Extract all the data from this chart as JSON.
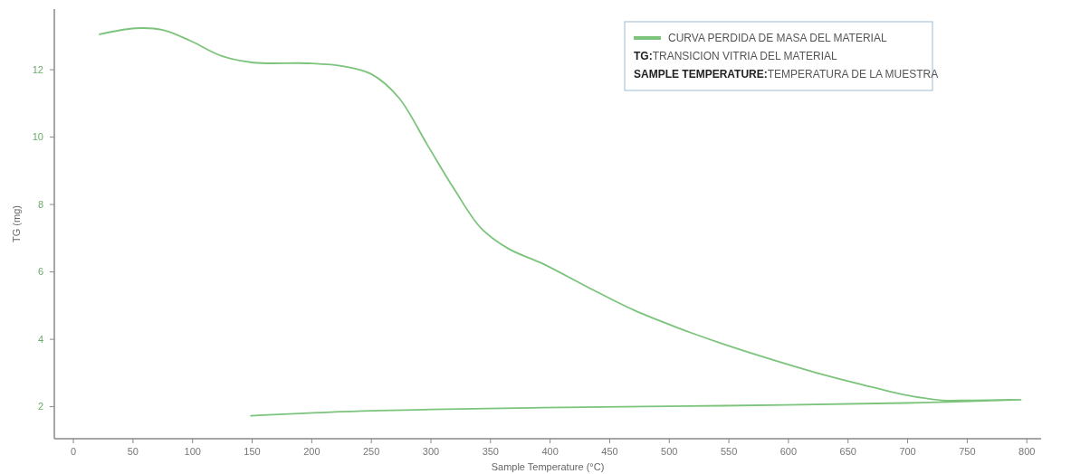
{
  "chart_data": {
    "type": "line",
    "xlabel": "Sample Temperature (°C)",
    "ylabel": "TG (mg)",
    "xlim": [
      -16,
      812
    ],
    "xticks": [
      0,
      50,
      100,
      150,
      200,
      250,
      300,
      350,
      400,
      450,
      500,
      550,
      600,
      650,
      700,
      750,
      800
    ],
    "ylim": [
      1.05,
      13.8
    ],
    "yticks": [
      2,
      4,
      6,
      8,
      10,
      12
    ],
    "series": [
      {
        "name": "CURVA PERDIDA DE MASA DEL MATERIAL",
        "color": "#7cc47c",
        "x": [
          22,
          52,
          75,
          98,
          125,
          151,
          197,
          227,
          250,
          273,
          297,
          320,
          342,
          365,
          394,
          432,
          470,
          508,
          546,
          584,
          622,
          660,
          698,
          729,
          751,
          795,
          698,
          546,
          394,
          242,
          149
        ],
        "values": [
          13.05,
          13.23,
          13.18,
          12.86,
          12.4,
          12.21,
          12.19,
          12.1,
          11.87,
          11.17,
          9.77,
          8.43,
          7.3,
          6.69,
          6.24,
          5.54,
          4.87,
          4.33,
          3.85,
          3.42,
          3.02,
          2.67,
          2.35,
          2.19,
          2.19,
          2.21,
          2.11,
          2.03,
          1.97,
          1.87,
          1.73
        ]
      }
    ],
    "annotations": [
      "TG:TRANSICION VITRIA DEL MATERIAL",
      "SAMPLE TEMPERATURE:TEMPERATURA DE LA MUESTRA"
    ],
    "legend": "top right",
    "grid": false,
    "marker": "none",
    "line_style": "solid"
  }
}
